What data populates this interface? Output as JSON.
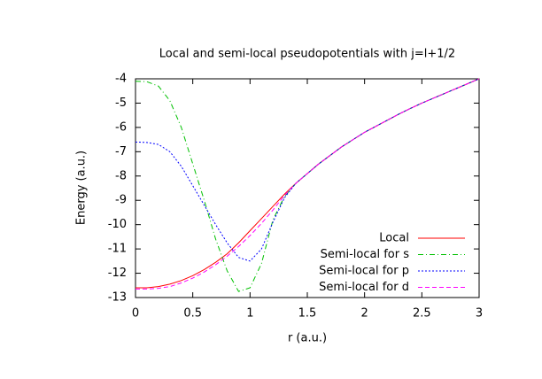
{
  "chart_data": {
    "type": "line",
    "title": "Local and semi-local pseudopotentials with j=l+1/2",
    "x_label": "r (a.u.)",
    "y_label": "Energy (a.u.)",
    "x": [
      0,
      0.1,
      0.2,
      0.3,
      0.4,
      0.5,
      0.6,
      0.7,
      0.8,
      0.9,
      1.0,
      1.1,
      1.2,
      1.3,
      1.4,
      1.5,
      1.6,
      1.7,
      1.8,
      1.9,
      2.0,
      2.1,
      2.2,
      2.3,
      2.4,
      2.5,
      2.6,
      2.7,
      2.8,
      2.9,
      3.0
    ],
    "series": [
      {
        "name": "Local",
        "color": "#ff0000",
        "values": [
          -12.6,
          -12.6,
          -12.55,
          -12.45,
          -12.3,
          -12.1,
          -11.85,
          -11.55,
          -11.2,
          -10.75,
          -10.25,
          -9.75,
          -9.25,
          -8.75,
          -8.3,
          -7.9,
          -7.5,
          -7.15,
          -6.8,
          -6.5,
          -6.2,
          -5.95,
          -5.7,
          -5.45,
          -5.22,
          -5.0,
          -4.8,
          -4.6,
          -4.4,
          -4.2,
          -4.0
        ]
      },
      {
        "name": "Semi-local for s",
        "color": "#00c000",
        "values": [
          -4.1,
          -4.12,
          -4.3,
          -4.9,
          -6.0,
          -7.5,
          -9.0,
          -10.6,
          -11.9,
          -12.75,
          -12.6,
          -11.6,
          -9.8,
          -8.85,
          -8.3,
          -7.9,
          -7.5,
          -7.15,
          -6.8,
          -6.5,
          -6.2,
          -5.95,
          -5.7,
          -5.45,
          -5.22,
          -5.0,
          -4.8,
          -4.6,
          -4.4,
          -4.2,
          -4.0
        ]
      },
      {
        "name": "Semi-local for p",
        "color": "#0000ff",
        "values": [
          -6.6,
          -6.62,
          -6.7,
          -7.0,
          -7.6,
          -8.4,
          -9.2,
          -10.0,
          -10.75,
          -11.35,
          -11.5,
          -11.0,
          -9.9,
          -8.9,
          -8.3,
          -7.9,
          -7.5,
          -7.15,
          -6.8,
          -6.5,
          -6.2,
          -5.95,
          -5.7,
          -5.45,
          -5.22,
          -5.0,
          -4.8,
          -4.6,
          -4.4,
          -4.2,
          -4.0
        ]
      },
      {
        "name": "Semi-local for d",
        "color": "#ff00ff",
        "values": [
          -12.65,
          -12.65,
          -12.62,
          -12.55,
          -12.4,
          -12.2,
          -11.95,
          -11.65,
          -11.3,
          -10.9,
          -10.45,
          -9.95,
          -9.4,
          -8.8,
          -8.3,
          -7.9,
          -7.5,
          -7.15,
          -6.8,
          -6.5,
          -6.2,
          -5.95,
          -5.7,
          -5.45,
          -5.22,
          -5.0,
          -4.8,
          -4.6,
          -4.4,
          -4.2,
          -4.0
        ]
      }
    ],
    "xlim": [
      0,
      3
    ],
    "xticks": [
      0,
      0.5,
      1,
      1.5,
      2,
      2.5,
      3
    ],
    "ylim": [
      -13,
      -4
    ],
    "yticks": [
      -4,
      -5,
      -6,
      -7,
      -8,
      -9,
      -10,
      -11,
      -12,
      -13
    ],
    "legend": "lower right"
  }
}
